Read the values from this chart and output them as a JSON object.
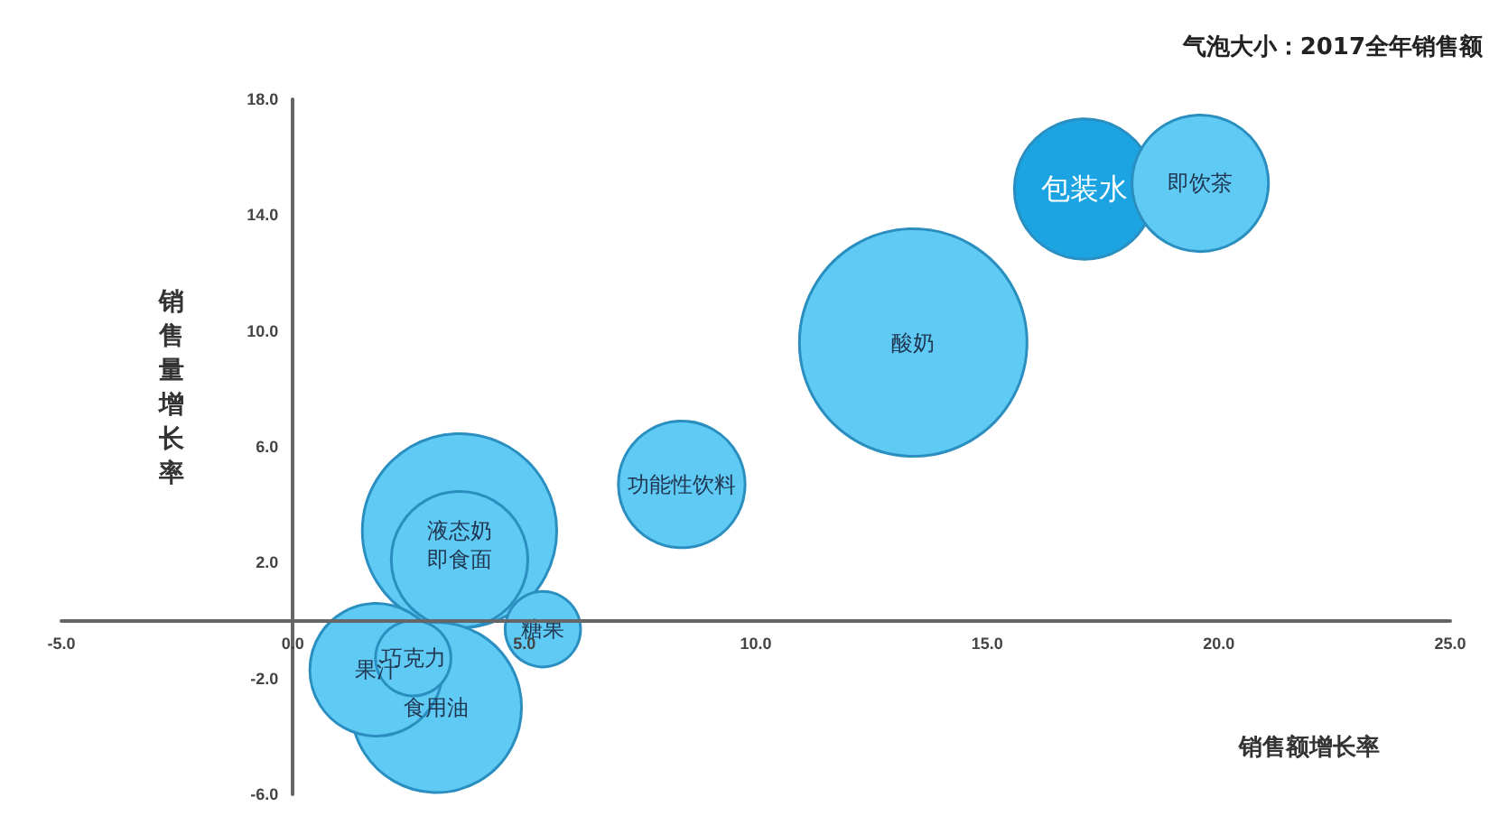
{
  "chart_data": {
    "type": "bubble",
    "title": "气泡大小：2017全年销售额",
    "xlabel": "销售额增长率",
    "ylabel": "销售量增长率",
    "series": [
      {
        "name": "包装水",
        "color": "#1ba3e2",
        "x": [
          17.1
        ],
        "values": [
          14.9
        ],
        "sizes": [
          0.38
        ]
      },
      {
        "name": "即饮茶",
        "color": "#5fcaf3",
        "x": [
          19.6
        ],
        "values": [
          15.1
        ],
        "sizes": [
          0.36
        ]
      },
      {
        "name": "酸奶",
        "color": "#5fcaf3",
        "x": [
          13.4
        ],
        "values": [
          9.6
        ],
        "sizes": [
          1
        ]
      },
      {
        "name": "功能性饮料",
        "color": "#5fcaf3",
        "x": [
          8.4
        ],
        "values": [
          4.7
        ],
        "sizes": [
          0.31
        ]
      },
      {
        "name": "液态奶",
        "color": "#5fcaf3",
        "x": [
          3.6
        ],
        "values": [
          3.1
        ],
        "sizes": [
          0.73
        ]
      },
      {
        "name": "即食面",
        "color": "#5fcaf3",
        "x": [
          3.6
        ],
        "values": [
          2.1
        ],
        "sizes": [
          0.36
        ]
      },
      {
        "name": "糖果",
        "color": "#5fcaf3",
        "x": [
          5.4
        ],
        "values": [
          -0.3
        ],
        "sizes": [
          0.11
        ]
      },
      {
        "name": "食用油",
        "color": "#5fcaf3",
        "x": [
          3.1
        ],
        "values": [
          -3.0
        ],
        "sizes": [
          0.56
        ]
      },
      {
        "name": "果汁",
        "color": "#5fcaf3",
        "x": [
          1.8
        ],
        "values": [
          -1.7
        ],
        "sizes": [
          0.34
        ]
      },
      {
        "name": "巧克力",
        "color": "#5fcaf3",
        "x": [
          2.6
        ],
        "values": [
          -1.3
        ],
        "sizes": [
          0.11
        ]
      }
    ],
    "xlim": [
      -5,
      25
    ],
    "xticks": [
      {
        "value": -5,
        "label": "-5.0"
      },
      {
        "value": 0,
        "label": "0.0"
      },
      {
        "value": 5,
        "label": "5.0"
      },
      {
        "value": 10,
        "label": "10.0"
      },
      {
        "value": 15,
        "label": "15.0"
      },
      {
        "value": 20,
        "label": "20.0"
      },
      {
        "value": 25,
        "label": "25.0"
      }
    ],
    "ylim": [
      -6,
      18
    ],
    "yticks": [
      {
        "value": -6,
        "label": "-6.0"
      },
      {
        "value": -2,
        "label": "-2.0"
      },
      {
        "value": 2,
        "label": "2.0"
      },
      {
        "value": 6,
        "label": "6.0"
      },
      {
        "value": 10,
        "label": "10.0"
      },
      {
        "value": 14,
        "label": "14.0"
      },
      {
        "value": 18,
        "label": "18.0"
      }
    ],
    "grid": false,
    "legend": false
  }
}
